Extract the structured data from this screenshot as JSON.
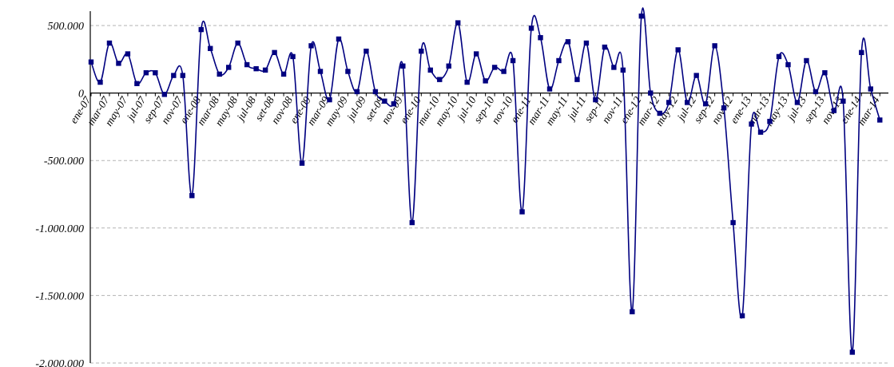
{
  "chart_data": {
    "type": "line",
    "title": "",
    "xlabel": "",
    "ylabel": "",
    "ylim": [
      -2000000,
      500000
    ],
    "yticks": [
      {
        "value": 500000,
        "label": "500.000"
      },
      {
        "value": 0,
        "label": "0"
      },
      {
        "value": -500000,
        "label": "-500.000"
      },
      {
        "value": -1000000,
        "label": "-1.000.000"
      },
      {
        "value": -1500000,
        "label": "-1.500.000"
      },
      {
        "value": -2000000,
        "label": "-2.000.000"
      }
    ],
    "x_labels": [
      "ene-07",
      "mar-07",
      "may-07",
      "jul-07",
      "sep-07",
      "nov-07",
      "ene-08",
      "mar-08",
      "may-08",
      "jul-08",
      "set-08",
      "nov-08",
      "ene-09",
      "mar-09",
      "may-09",
      "jul-09",
      "set-09",
      "nov-09",
      "ene-10",
      "mar-10",
      "may-10",
      "jul-10",
      "sep-10",
      "nov-10",
      "ene-11",
      "mar-11",
      "may-11",
      "jul-11",
      "sep-11",
      "nov-11",
      "ene-12",
      "mar-12",
      "may-12",
      "jul-12",
      "sep-12",
      "nov-12",
      "ene-13",
      "mar-13",
      "may-13",
      "jul-13",
      "sep-13",
      "nov-13",
      "ene-14",
      "mar-14"
    ],
    "x_label_step": 2,
    "series": [
      {
        "color": "#000080",
        "marker": "square",
        "values": [
          230000,
          80000,
          370000,
          220000,
          290000,
          70000,
          150000,
          150000,
          -10000,
          130000,
          130000,
          -760000,
          470000,
          330000,
          140000,
          190000,
          370000,
          210000,
          180000,
          170000,
          300000,
          140000,
          270000,
          -520000,
          350000,
          160000,
          -50000,
          400000,
          160000,
          10000,
          310000,
          10000,
          -60000,
          -80000,
          200000,
          -960000,
          310000,
          170000,
          100000,
          200000,
          520000,
          80000,
          290000,
          90000,
          190000,
          160000,
          240000,
          -880000,
          480000,
          410000,
          30000,
          240000,
          380000,
          100000,
          370000,
          -50000,
          340000,
          190000,
          170000,
          -1620000,
          570000,
          0,
          -150000,
          -70000,
          320000,
          -70000,
          130000,
          -80000,
          350000,
          -110000,
          -960000,
          -1650000,
          -230000,
          -290000,
          -210000,
          270000,
          210000,
          -70000,
          240000,
          10000,
          150000,
          -130000,
          -60000,
          -1920000,
          300000,
          30000,
          -200000
        ]
      }
    ],
    "grid": {
      "horizontal": true,
      "vertical": false
    }
  }
}
